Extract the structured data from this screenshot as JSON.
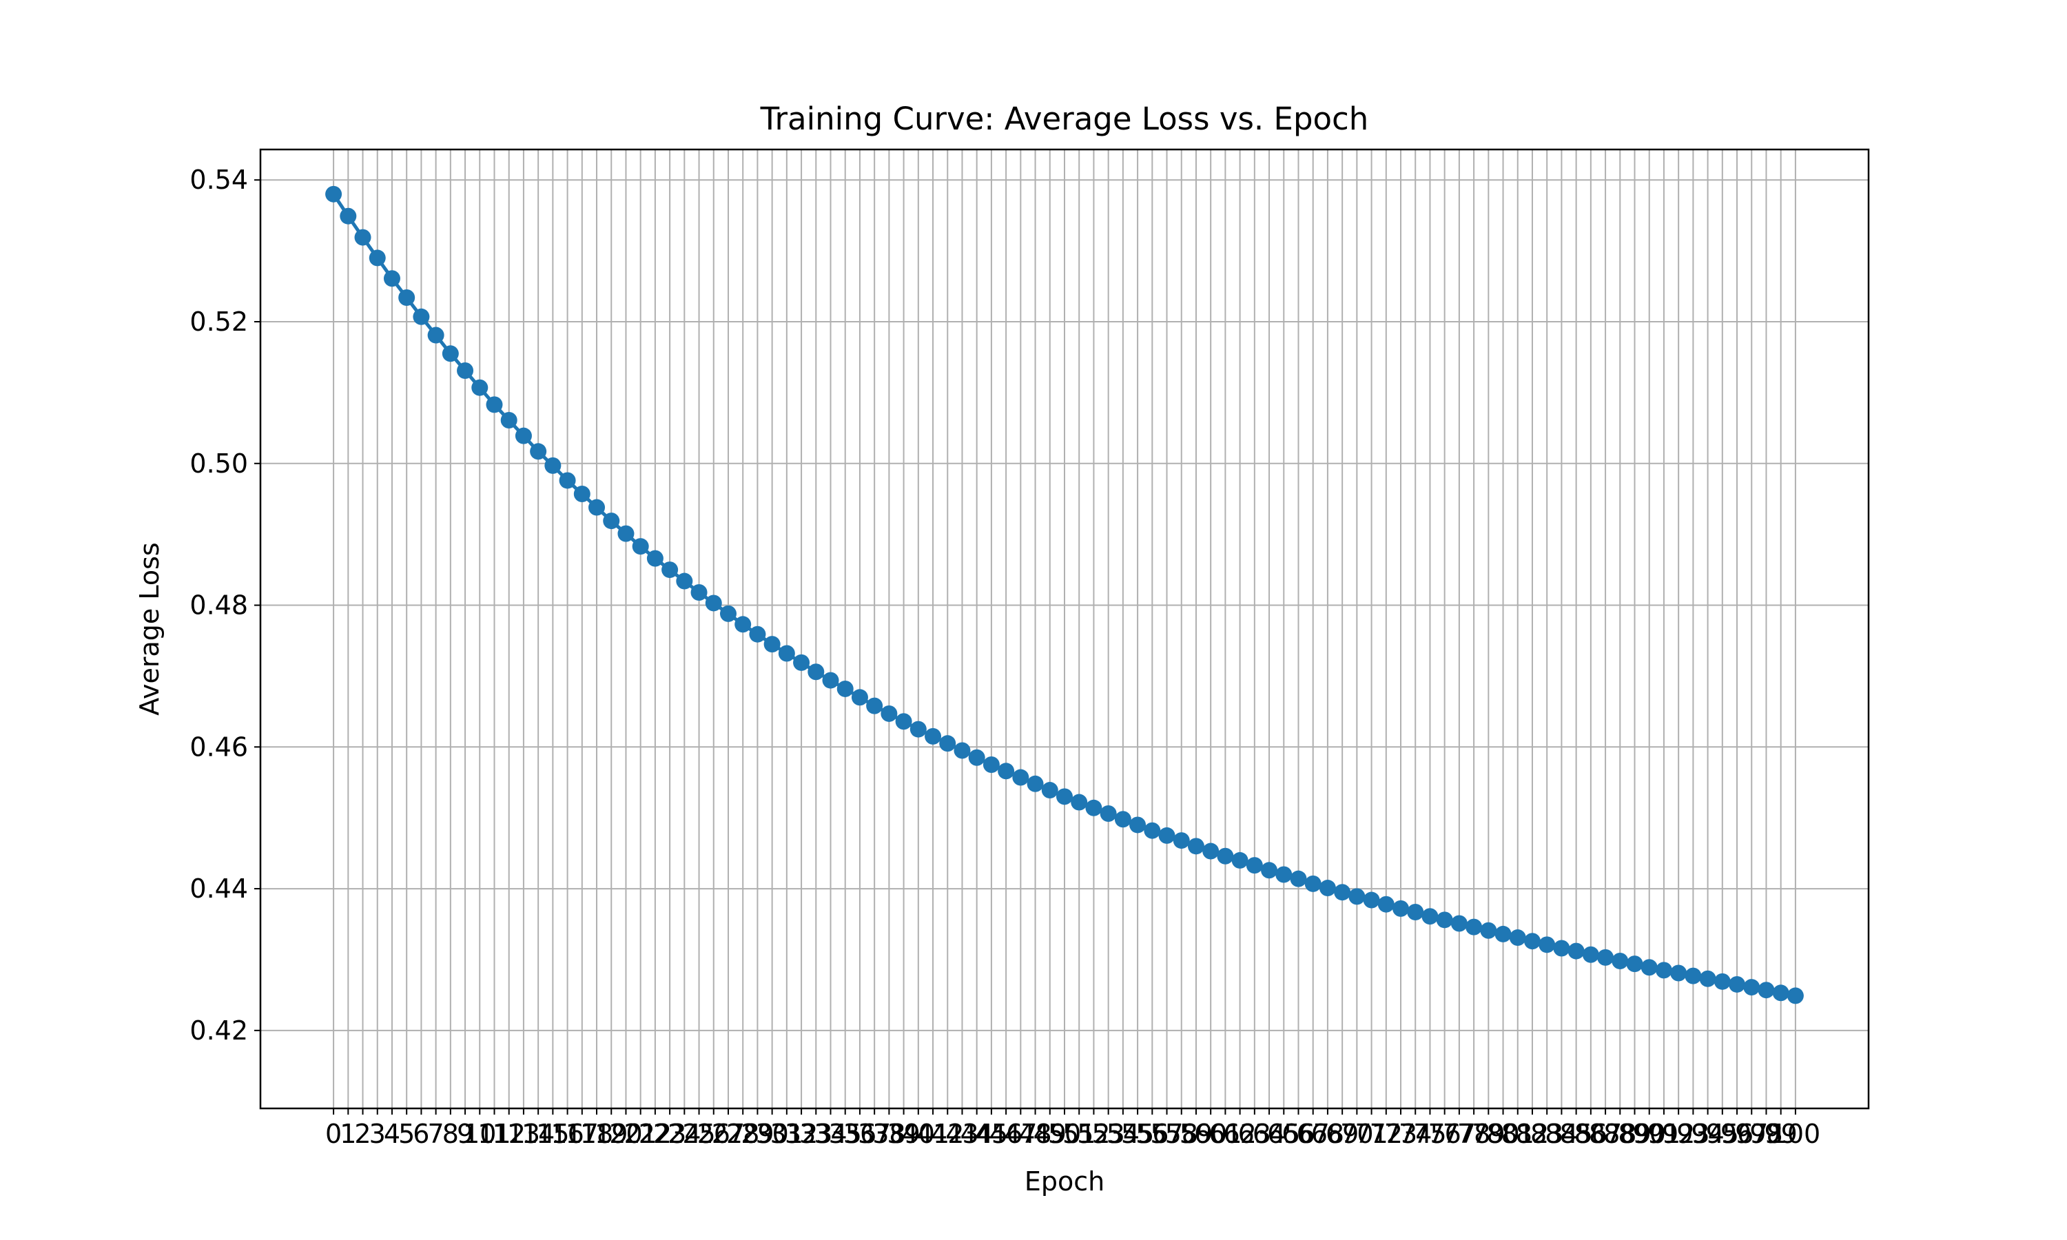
{
  "chart_data": {
    "type": "line",
    "title": "Training Curve: Average Loss vs. Epoch",
    "xlabel": "Epoch",
    "ylabel": "Average Loss",
    "xlim": [
      -5,
      105
    ],
    "ylim": [
      0.409,
      0.5443
    ],
    "grid": true,
    "marker": "circle",
    "x_ticks": [
      0,
      1,
      2,
      3,
      4,
      5,
      6,
      7,
      8,
      9,
      10,
      11,
      12,
      13,
      14,
      15,
      16,
      17,
      18,
      19,
      20,
      21,
      22,
      23,
      24,
      25,
      26,
      27,
      28,
      29,
      30,
      31,
      32,
      33,
      34,
      35,
      36,
      37,
      38,
      39,
      40,
      41,
      42,
      43,
      44,
      45,
      46,
      47,
      48,
      49,
      50,
      51,
      52,
      53,
      54,
      55,
      56,
      57,
      58,
      59,
      60,
      61,
      62,
      63,
      64,
      65,
      66,
      67,
      68,
      69,
      70,
      71,
      72,
      73,
      74,
      75,
      76,
      77,
      78,
      79,
      80,
      81,
      82,
      83,
      84,
      85,
      86,
      87,
      88,
      89,
      90,
      91,
      92,
      93,
      94,
      95,
      96,
      97,
      98,
      99,
      100
    ],
    "y_ticks": [
      "0.42",
      "0.44",
      "0.46",
      "0.48",
      "0.50",
      "0.52",
      "0.54"
    ],
    "series": [
      {
        "name": "Average Loss",
        "color": "#1f77b4",
        "x": [
          0,
          1,
          2,
          3,
          4,
          5,
          6,
          7,
          8,
          9,
          10,
          11,
          12,
          13,
          14,
          15,
          16,
          17,
          18,
          19,
          20,
          21,
          22,
          23,
          24,
          25,
          26,
          27,
          28,
          29,
          30,
          31,
          32,
          33,
          34,
          35,
          36,
          37,
          38,
          39,
          40,
          41,
          42,
          43,
          44,
          45,
          46,
          47,
          48,
          49,
          50,
          51,
          52,
          53,
          54,
          55,
          56,
          57,
          58,
          59,
          60,
          61,
          62,
          63,
          64,
          65,
          66,
          67,
          68,
          69,
          70,
          71,
          72,
          73,
          74,
          75,
          76,
          77,
          78,
          79,
          80,
          81,
          82,
          83,
          84,
          85,
          86,
          87,
          88,
          89,
          90,
          91,
          92,
          93,
          94,
          95,
          96,
          97,
          98,
          99,
          100
        ],
        "values": [
          0.538,
          0.5349,
          0.5319,
          0.529,
          0.5261,
          0.5234,
          0.5207,
          0.5181,
          0.5155,
          0.5131,
          0.5107,
          0.5083,
          0.5061,
          0.5039,
          0.5017,
          0.4997,
          0.4976,
          0.4957,
          0.4938,
          0.4919,
          0.4901,
          0.4883,
          0.4866,
          0.485,
          0.4834,
          0.4818,
          0.4803,
          0.4788,
          0.4773,
          0.4759,
          0.4745,
          0.4732,
          0.4719,
          0.4706,
          0.4694,
          0.4682,
          0.467,
          0.4658,
          0.4647,
          0.4636,
          0.4625,
          0.4615,
          0.4605,
          0.4595,
          0.4585,
          0.4575,
          0.4566,
          0.4557,
          0.4548,
          0.4539,
          0.453,
          0.4522,
          0.4514,
          0.4506,
          0.4498,
          0.449,
          0.4482,
          0.4475,
          0.4468,
          0.446,
          0.4453,
          0.4446,
          0.444,
          0.4433,
          0.4426,
          0.442,
          0.4414,
          0.4407,
          0.4401,
          0.4395,
          0.4389,
          0.4384,
          0.4378,
          0.4372,
          0.4367,
          0.4361,
          0.4356,
          0.4351,
          0.4346,
          0.4341,
          0.4336,
          0.4331,
          0.4326,
          0.4321,
          0.4316,
          0.4312,
          0.4307,
          0.4303,
          0.4298,
          0.4294,
          0.4289,
          0.4285,
          0.4281,
          0.4277,
          0.4273,
          0.4269,
          0.4265,
          0.4261,
          0.4257,
          0.4253,
          0.4249
        ]
      }
    ]
  }
}
